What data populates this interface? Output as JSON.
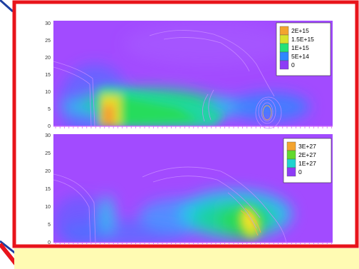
{
  "colors": {
    "frame_red": "#e8141b",
    "bottom_bar": "#fffbb3",
    "outline_blue": "#1d3fa0",
    "purple_background": "#a24bff",
    "cyan": "#25c7f3",
    "green": "#24d96d",
    "yellow": "#f7e12a",
    "orange": "#f39b30"
  },
  "chart_data": [
    {
      "type": "heatmap",
      "colormap": [
        "#8a3bff",
        "#2f7bff",
        "#20d0d8",
        "#20d860",
        "#b6e42b",
        "#f7e12a",
        "#f39b30"
      ],
      "y_ticks": [
        "0",
        "5",
        "10",
        "15",
        "20",
        "25",
        "30"
      ],
      "ylim": [
        0,
        30
      ],
      "grid": false,
      "legend": {
        "placement": "top-right",
        "labels": [
          "2E+15",
          "1.5E+15",
          "1E+15",
          "5E+14",
          "0"
        ],
        "values": [
          2000000000000000.0,
          1500000000000000.0,
          1000000000000000.0,
          500000000000000.0,
          0
        ],
        "swatches": [
          "#f3a42f",
          "#d8e22c",
          "#24e179",
          "#2f86ff",
          "#8d3bf6"
        ]
      }
    },
    {
      "type": "heatmap",
      "colormap": [
        "#8a3bff",
        "#2f7bff",
        "#20d0d8",
        "#20d860",
        "#b6e42b",
        "#f7e12a",
        "#f39b30"
      ],
      "y_ticks": [
        "0",
        "5",
        "10",
        "15",
        "20",
        "25",
        "30"
      ],
      "ylim": [
        0,
        30
      ],
      "grid": false,
      "legend": {
        "placement": "top-right",
        "labels": [
          "3E+27",
          "2E+27",
          "1E+27",
          "0"
        ],
        "values": [
          3e+27,
          2e+27,
          1e+27,
          0
        ],
        "swatches": [
          "#f3a42f",
          "#62d92e",
          "#1fd3cf",
          "#8d3bf6"
        ]
      }
    }
  ]
}
